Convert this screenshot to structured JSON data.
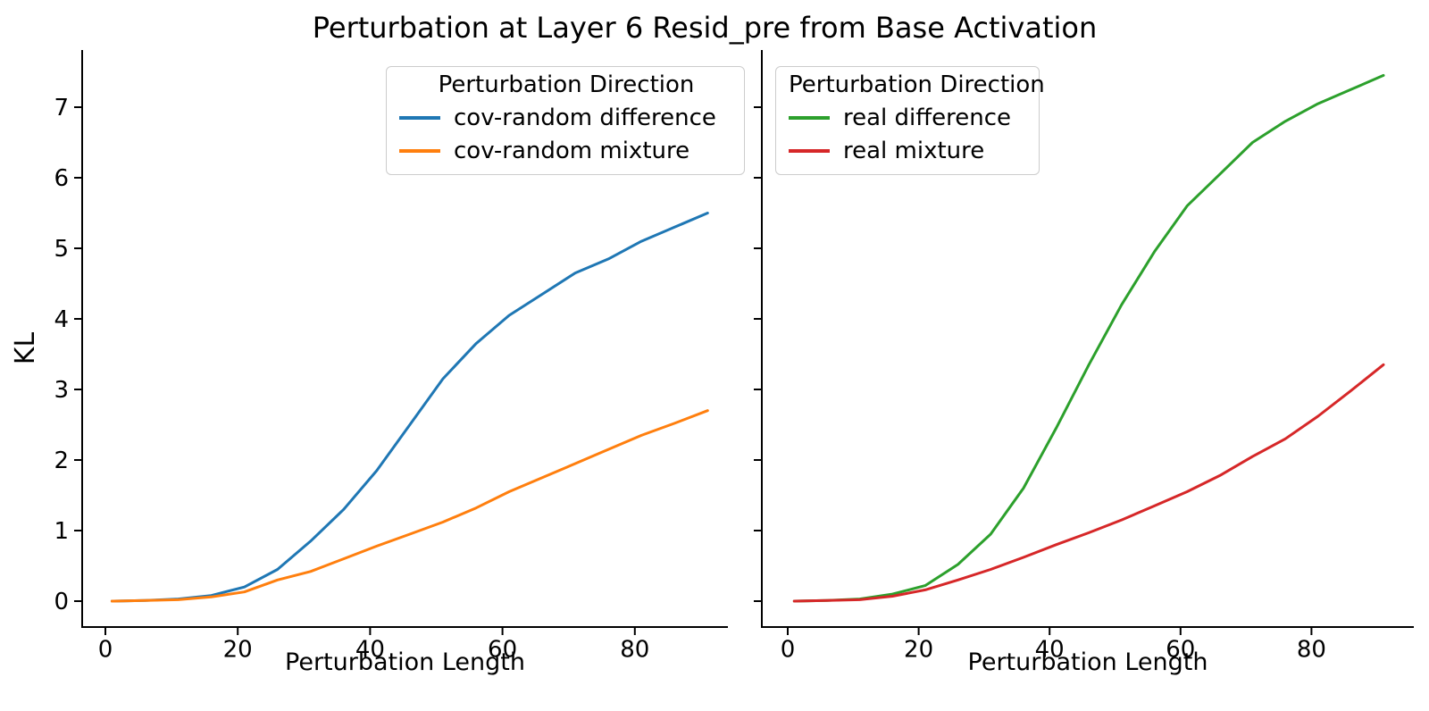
{
  "figure": {
    "title": "Perturbation at Layer 6 Resid_pre from Base Activation"
  },
  "chart_data": [
    {
      "type": "line",
      "panel": "left",
      "xlabel": "Perturbation Length",
      "ylabel": "KL",
      "legend": {
        "title": "Perturbation Direction",
        "position": "upper right"
      },
      "grid": false,
      "xlim": [
        -3.5,
        94
      ],
      "ylim": [
        -0.37,
        7.8
      ],
      "xticks": [
        0,
        20,
        40,
        60,
        80
      ],
      "yticks": [
        0,
        1,
        2,
        3,
        4,
        5,
        6,
        7
      ],
      "ytick_labels_visible": true,
      "x": [
        1,
        6,
        11,
        16,
        21,
        26,
        31,
        36,
        41,
        46,
        51,
        56,
        61,
        66,
        71,
        76,
        81,
        86,
        91
      ],
      "series": [
        {
          "name": "cov-random difference",
          "color": "#1f77b4",
          "values": [
            0.0,
            0.01,
            0.03,
            0.08,
            0.2,
            0.45,
            0.85,
            1.3,
            1.85,
            2.5,
            3.15,
            3.65,
            4.05,
            4.35,
            4.65,
            4.85,
            5.1,
            5.3,
            5.5
          ]
        },
        {
          "name": "cov-random mixture",
          "color": "#ff7f0e",
          "values": [
            0.0,
            0.01,
            0.02,
            0.06,
            0.13,
            0.3,
            0.42,
            0.6,
            0.78,
            0.95,
            1.12,
            1.32,
            1.55,
            1.75,
            1.95,
            2.15,
            2.35,
            2.52,
            2.7
          ]
        }
      ]
    },
    {
      "type": "line",
      "panel": "right",
      "xlabel": "Perturbation Length",
      "ylabel": "",
      "legend": {
        "title": "Perturbation Direction",
        "position": "upper left"
      },
      "grid": false,
      "xlim": [
        -4,
        95.6
      ],
      "ylim": [
        -0.37,
        7.8
      ],
      "xticks": [
        0,
        20,
        40,
        60,
        80
      ],
      "yticks": [
        0,
        1,
        2,
        3,
        4,
        5,
        6,
        7
      ],
      "ytick_labels_visible": false,
      "x": [
        1,
        6,
        11,
        16,
        21,
        26,
        31,
        36,
        41,
        46,
        51,
        56,
        61,
        66,
        71,
        76,
        81,
        86,
        91
      ],
      "series": [
        {
          "name": "real difference",
          "color": "#2ca02c",
          "values": [
            0.0,
            0.01,
            0.03,
            0.1,
            0.22,
            0.52,
            0.95,
            1.6,
            2.45,
            3.35,
            4.2,
            4.95,
            5.6,
            6.05,
            6.5,
            6.8,
            7.05,
            7.25,
            7.45
          ]
        },
        {
          "name": "real mixture",
          "color": "#d62728",
          "values": [
            0.0,
            0.01,
            0.02,
            0.07,
            0.16,
            0.3,
            0.45,
            0.62,
            0.8,
            0.97,
            1.15,
            1.35,
            1.55,
            1.78,
            2.05,
            2.3,
            2.62,
            2.98,
            3.35
          ]
        }
      ]
    }
  ]
}
